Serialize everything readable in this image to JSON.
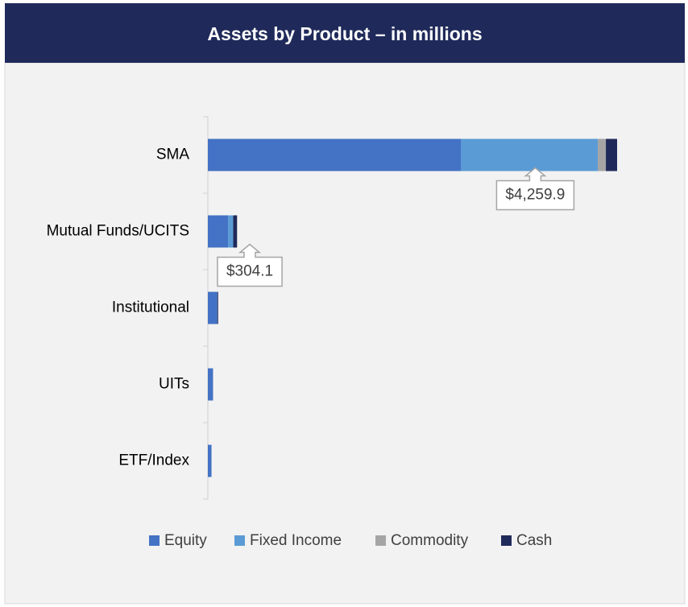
{
  "chart_data": {
    "type": "stacked-bar-horizontal",
    "title": "Assets by Product – in millions",
    "categories": [
      "SMA",
      "Mutual Funds/UCITS",
      "Institutional",
      "UITs",
      "ETF/Index"
    ],
    "series": [
      {
        "name": "Equity",
        "color": "#4472c4",
        "values": [
          2633,
          210.2,
          98,
          54,
          36
        ]
      },
      {
        "name": "Fixed Income",
        "color": "#5b9bd5",
        "values": [
          1426,
          53.7,
          0,
          0,
          4
        ]
      },
      {
        "name": "Commodity",
        "color": "#a5a5a5",
        "values": [
          84,
          0,
          0,
          0,
          0
        ]
      },
      {
        "name": "Cash",
        "color": "#1f2a5a",
        "values": [
          116.9,
          40.2,
          9,
          0,
          0
        ]
      }
    ],
    "annotations": [
      {
        "category": "SMA",
        "text": "$4,259.9"
      },
      {
        "category": "Mutual Funds/UCITS",
        "text": "$304.1"
      }
    ],
    "legend": "bottom"
  }
}
